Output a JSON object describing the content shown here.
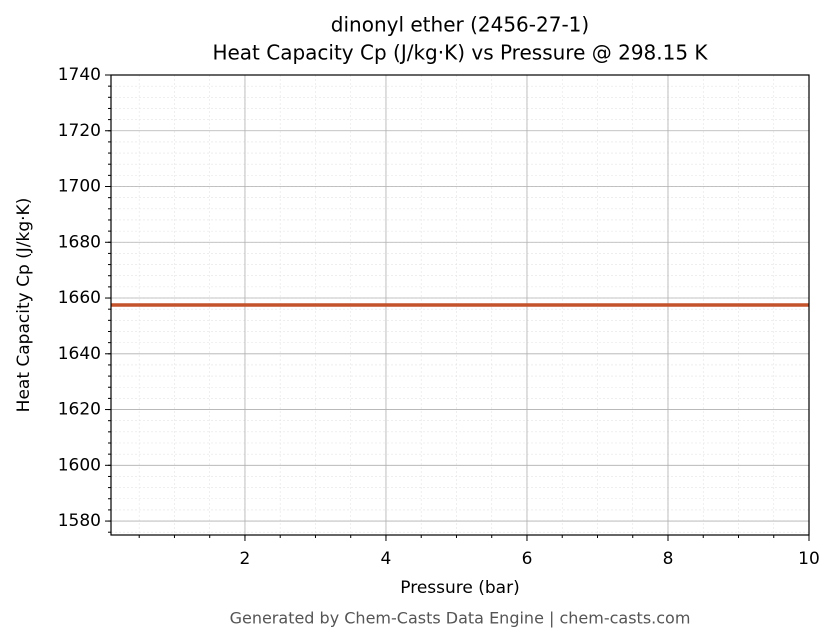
{
  "chart_data": {
    "type": "line",
    "title": "dinonyl ether (2456-27-1)",
    "subtitle": "Heat Capacity Cp (J/kg·K) vs Pressure @ 298.15 K",
    "x_label": "Pressure (bar)",
    "y_label": "Heat Capacity Cp (J/kg·K)",
    "footer": "Generated by Chem-Casts Data Engine | chem-casts.com",
    "x": [
      0.1,
      10
    ],
    "series": [
      {
        "name": "Cp",
        "color": "#c4522a",
        "values": [
          1657.5,
          1657.5
        ]
      }
    ],
    "xlim": [
      0.1,
      10
    ],
    "xticks": [
      2,
      4,
      6,
      8,
      10
    ],
    "ylim": [
      1575,
      1740
    ],
    "yticks": [
      1580,
      1600,
      1620,
      1640,
      1660,
      1680,
      1700,
      1720,
      1740
    ],
    "grid": true
  }
}
